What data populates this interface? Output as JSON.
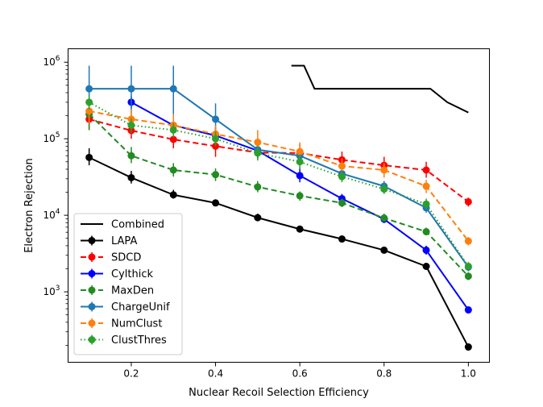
{
  "chart_data": {
    "type": "line",
    "title": "",
    "xlabel": "Nuclear Recoil Selection Efficiency",
    "ylabel": "Electron Rejection",
    "xlim": [
      0.05,
      1.05
    ],
    "ylim": [
      120,
      1500000
    ],
    "yscale": "log",
    "x_ticks": [
      {
        "value": 0.2,
        "label": "0.2"
      },
      {
        "value": 0.4,
        "label": "0.4"
      },
      {
        "value": 0.6,
        "label": "0.6"
      },
      {
        "value": 0.8,
        "label": "0.8"
      },
      {
        "value": 1.0,
        "label": "1.0"
      }
    ],
    "y_ticks": [
      {
        "value": 1000,
        "exp": "3"
      },
      {
        "value": 10000,
        "exp": "4"
      },
      {
        "value": 100000,
        "exp": "5"
      },
      {
        "value": 1000000,
        "exp": "6"
      }
    ],
    "legend_position": "lower-left",
    "series": [
      {
        "name": "Combined",
        "color": "#000000",
        "dash": "solid",
        "marker": false,
        "x": [
          0.58,
          0.61,
          0.635,
          0.7,
          0.8,
          0.91,
          0.95,
          1.0
        ],
        "values": [
          900000,
          900000,
          450000,
          450000,
          450000,
          450000,
          300000,
          220000
        ],
        "err_lo": [],
        "err_hi": []
      },
      {
        "name": "LAPA",
        "color": "#000000",
        "dash": "solid",
        "marker": true,
        "x": [
          0.1,
          0.2,
          0.3,
          0.4,
          0.5,
          0.6,
          0.7,
          0.8,
          0.9,
          1.0
        ],
        "values": [
          57000,
          31000,
          18500,
          14500,
          9300,
          6600,
          4900,
          3500,
          2150,
          190
        ],
        "err_lo": [
          45000,
          26000,
          16500,
          13500,
          8400,
          6100,
          4500,
          3250,
          2000,
          170
        ],
        "err_hi": [
          75000,
          38000,
          21500,
          16000,
          10500,
          7200,
          5300,
          3800,
          2350,
          210
        ]
      },
      {
        "name": "SDCD",
        "color": "#ff0000",
        "dash": "dashed",
        "marker": true,
        "x": [
          0.1,
          0.2,
          0.3,
          0.4,
          0.5,
          0.6,
          0.7,
          0.8,
          0.9,
          1.0
        ],
        "values": [
          180000,
          128000,
          98000,
          80000,
          66000,
          65000,
          53000,
          45000,
          39000,
          15000
        ],
        "err_lo": [
          130000,
          100000,
          75000,
          58000,
          55000,
          52000,
          43000,
          36000,
          31000,
          13000
        ],
        "err_hi": [
          260000,
          175000,
          135000,
          115000,
          85000,
          85000,
          68000,
          58000,
          50000,
          17000
        ]
      },
      {
        "name": "Cylthick",
        "color": "#0000ff",
        "dash": "solid",
        "marker": true,
        "x": [
          0.2,
          0.3,
          0.4,
          0.5,
          0.6,
          0.7,
          0.8,
          0.9,
          1.0
        ],
        "values": [
          300000,
          150000,
          110000,
          70000,
          33000,
          16500,
          8900,
          3500,
          580
        ],
        "err_lo": [
          250000,
          110000,
          90000,
          55000,
          27000,
          14500,
          7900,
          3050,
          520
        ],
        "err_hi": [
          360000,
          200000,
          140000,
          90000,
          42000,
          19000,
          10000,
          4000,
          640
        ]
      },
      {
        "name": "MaxDen",
        "color": "#228b22",
        "dash": "dashed",
        "marker": true,
        "x": [
          0.1,
          0.2,
          0.3,
          0.4,
          0.5,
          0.6,
          0.7,
          0.8,
          0.9,
          1.0
        ],
        "values": [
          210000,
          60000,
          39000,
          34000,
          23500,
          18000,
          14500,
          9200,
          6100,
          1600
        ],
        "err_lo": [
          130000,
          48000,
          32000,
          28000,
          20000,
          15500,
          12800,
          8200,
          5500,
          1420
        ],
        "err_hi": [
          290000,
          78000,
          48000,
          41000,
          28000,
          20500,
          16500,
          10500,
          6900,
          1800
        ]
      },
      {
        "name": "ChargeUnif",
        "color": "#1f77b4",
        "dash": "solid",
        "marker": true,
        "x": [
          0.1,
          0.2,
          0.3,
          0.4,
          0.5,
          0.6,
          0.7,
          0.8,
          0.9,
          1.0
        ],
        "values": [
          450000,
          450000,
          450000,
          180000,
          72000,
          60000,
          35000,
          24000,
          12500,
          2100
        ],
        "err_lo": [
          180000,
          180000,
          180000,
          110000,
          55000,
          50000,
          30000,
          20500,
          10800,
          1850
        ],
        "err_hi": [
          900000,
          900000,
          900000,
          290000,
          95000,
          75000,
          41000,
          28000,
          14500,
          2400
        ]
      },
      {
        "name": "NumClust",
        "color": "#ff7f0e",
        "dash": "dashed",
        "marker": true,
        "x": [
          0.1,
          0.2,
          0.3,
          0.4,
          0.5,
          0.6,
          0.7,
          0.8,
          0.9,
          1.0
        ],
        "values": [
          230000,
          180000,
          150000,
          115000,
          90000,
          68000,
          44000,
          39000,
          24000,
          4600
        ],
        "err_lo": [
          160000,
          135000,
          105000,
          85000,
          65000,
          52000,
          35000,
          31000,
          19500,
          4050
        ],
        "err_hi": [
          320000,
          240000,
          210000,
          150000,
          130000,
          90000,
          55000,
          48000,
          29000,
          5200
        ]
      },
      {
        "name": "ClustThres",
        "color": "#2ca02c",
        "dash": "dotted",
        "marker": true,
        "x": [
          0.1,
          0.2,
          0.3,
          0.4,
          0.5,
          0.6,
          0.7,
          0.8,
          0.9,
          1.0
        ],
        "values": [
          300000,
          150000,
          130000,
          100000,
          65000,
          50000,
          32000,
          22000,
          14000,
          2150
        ],
        "err_lo": [
          240000,
          120000,
          105000,
          80000,
          52000,
          40000,
          27000,
          19000,
          12000,
          1900
        ],
        "err_hi": [
          370000,
          185000,
          160000,
          125000,
          80000,
          62000,
          38000,
          26000,
          16500,
          2450
        ]
      }
    ]
  }
}
